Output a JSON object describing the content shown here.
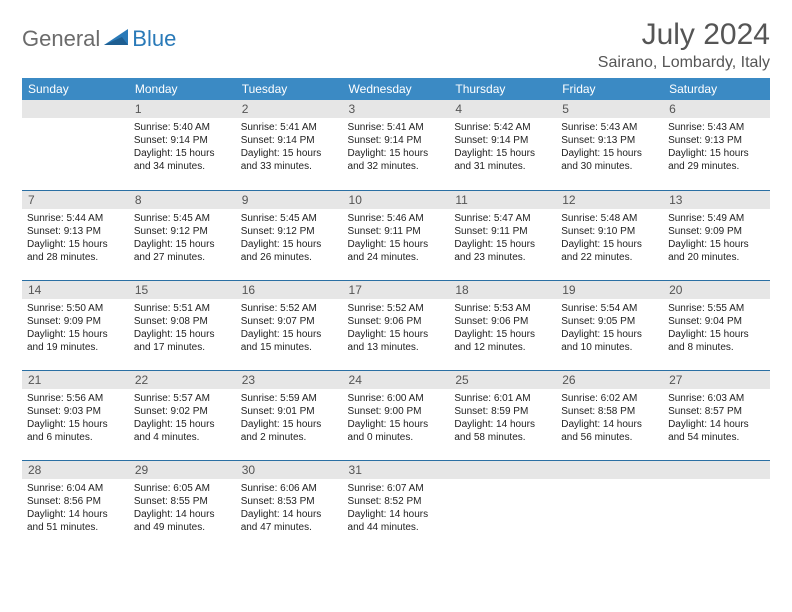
{
  "logo": {
    "text1": "General",
    "text2": "Blue"
  },
  "title": "July 2024",
  "location": "Sairano, Lombardy, Italy",
  "colors": {
    "header_bg": "#3b8ac4",
    "header_text": "#ffffff",
    "daynum_bg": "#e6e6e6",
    "row_border": "#2a6fa3",
    "logo_gray": "#6b6b6b",
    "logo_blue": "#2a7ab8"
  },
  "daysOfWeek": [
    "Sunday",
    "Monday",
    "Tuesday",
    "Wednesday",
    "Thursday",
    "Friday",
    "Saturday"
  ],
  "startOffset": 1,
  "daysInMonth": 31,
  "days": {
    "1": {
      "sunrise": "5:40 AM",
      "sunset": "9:14 PM",
      "dlh": 15,
      "dlm": 34
    },
    "2": {
      "sunrise": "5:41 AM",
      "sunset": "9:14 PM",
      "dlh": 15,
      "dlm": 33
    },
    "3": {
      "sunrise": "5:41 AM",
      "sunset": "9:14 PM",
      "dlh": 15,
      "dlm": 32
    },
    "4": {
      "sunrise": "5:42 AM",
      "sunset": "9:14 PM",
      "dlh": 15,
      "dlm": 31
    },
    "5": {
      "sunrise": "5:43 AM",
      "sunset": "9:13 PM",
      "dlh": 15,
      "dlm": 30
    },
    "6": {
      "sunrise": "5:43 AM",
      "sunset": "9:13 PM",
      "dlh": 15,
      "dlm": 29
    },
    "7": {
      "sunrise": "5:44 AM",
      "sunset": "9:13 PM",
      "dlh": 15,
      "dlm": 28
    },
    "8": {
      "sunrise": "5:45 AM",
      "sunset": "9:12 PM",
      "dlh": 15,
      "dlm": 27
    },
    "9": {
      "sunrise": "5:45 AM",
      "sunset": "9:12 PM",
      "dlh": 15,
      "dlm": 26
    },
    "10": {
      "sunrise": "5:46 AM",
      "sunset": "9:11 PM",
      "dlh": 15,
      "dlm": 24
    },
    "11": {
      "sunrise": "5:47 AM",
      "sunset": "9:11 PM",
      "dlh": 15,
      "dlm": 23
    },
    "12": {
      "sunrise": "5:48 AM",
      "sunset": "9:10 PM",
      "dlh": 15,
      "dlm": 22
    },
    "13": {
      "sunrise": "5:49 AM",
      "sunset": "9:09 PM",
      "dlh": 15,
      "dlm": 20
    },
    "14": {
      "sunrise": "5:50 AM",
      "sunset": "9:09 PM",
      "dlh": 15,
      "dlm": 19
    },
    "15": {
      "sunrise": "5:51 AM",
      "sunset": "9:08 PM",
      "dlh": 15,
      "dlm": 17
    },
    "16": {
      "sunrise": "5:52 AM",
      "sunset": "9:07 PM",
      "dlh": 15,
      "dlm": 15
    },
    "17": {
      "sunrise": "5:52 AM",
      "sunset": "9:06 PM",
      "dlh": 15,
      "dlm": 13
    },
    "18": {
      "sunrise": "5:53 AM",
      "sunset": "9:06 PM",
      "dlh": 15,
      "dlm": 12
    },
    "19": {
      "sunrise": "5:54 AM",
      "sunset": "9:05 PM",
      "dlh": 15,
      "dlm": 10
    },
    "20": {
      "sunrise": "5:55 AM",
      "sunset": "9:04 PM",
      "dlh": 15,
      "dlm": 8
    },
    "21": {
      "sunrise": "5:56 AM",
      "sunset": "9:03 PM",
      "dlh": 15,
      "dlm": 6
    },
    "22": {
      "sunrise": "5:57 AM",
      "sunset": "9:02 PM",
      "dlh": 15,
      "dlm": 4
    },
    "23": {
      "sunrise": "5:59 AM",
      "sunset": "9:01 PM",
      "dlh": 15,
      "dlm": 2
    },
    "24": {
      "sunrise": "6:00 AM",
      "sunset": "9:00 PM",
      "dlh": 15,
      "dlm": 0
    },
    "25": {
      "sunrise": "6:01 AM",
      "sunset": "8:59 PM",
      "dlh": 14,
      "dlm": 58
    },
    "26": {
      "sunrise": "6:02 AM",
      "sunset": "8:58 PM",
      "dlh": 14,
      "dlm": 56
    },
    "27": {
      "sunrise": "6:03 AM",
      "sunset": "8:57 PM",
      "dlh": 14,
      "dlm": 54
    },
    "28": {
      "sunrise": "6:04 AM",
      "sunset": "8:56 PM",
      "dlh": 14,
      "dlm": 51
    },
    "29": {
      "sunrise": "6:05 AM",
      "sunset": "8:55 PM",
      "dlh": 14,
      "dlm": 49
    },
    "30": {
      "sunrise": "6:06 AM",
      "sunset": "8:53 PM",
      "dlh": 14,
      "dlm": 47
    },
    "31": {
      "sunrise": "6:07 AM",
      "sunset": "8:52 PM",
      "dlh": 14,
      "dlm": 44
    }
  },
  "labels": {
    "sunrise": "Sunrise:",
    "sunset": "Sunset:",
    "daylight": "Daylight:",
    "hours": "hours",
    "and": "and",
    "minutes": "minutes."
  }
}
